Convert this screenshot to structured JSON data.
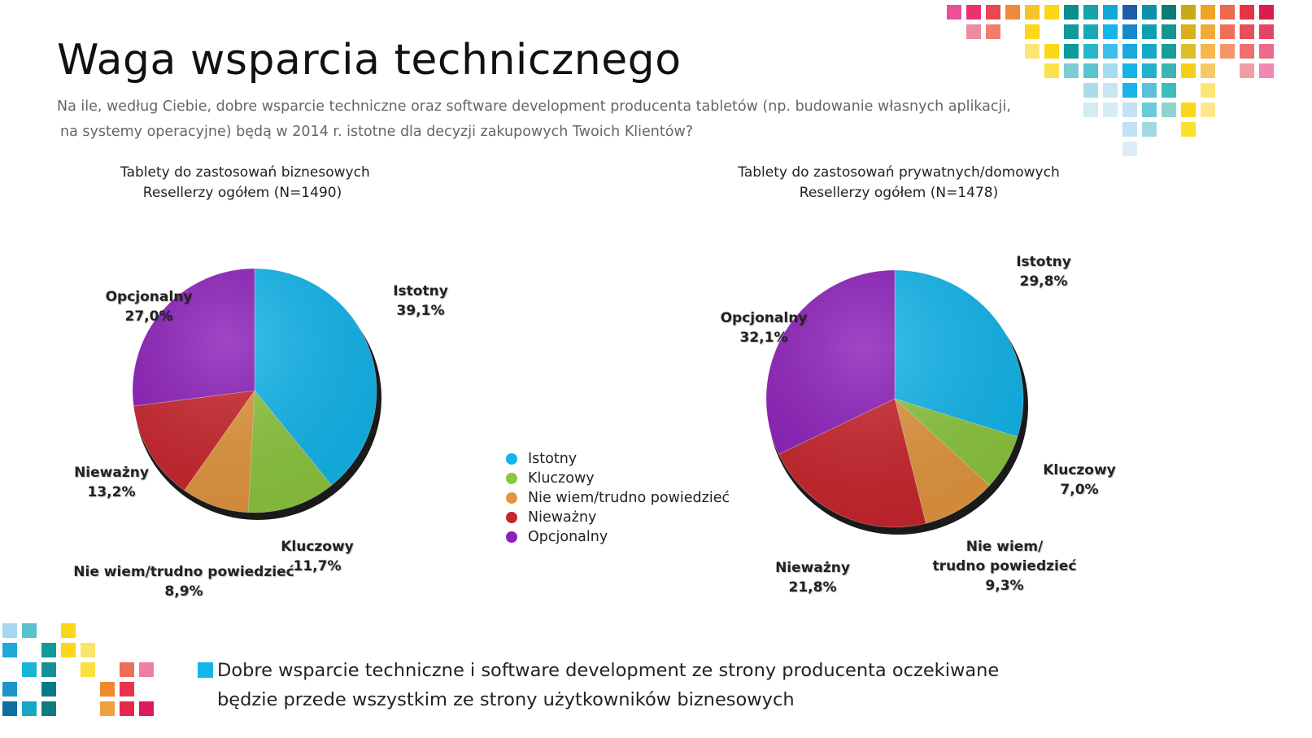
{
  "title": "Waga wsparcia technicznego",
  "subtitle": {
    "line1": "Na ile, według Ciebie, dobre wsparcie techniczne oraz software development producenta tabletów (np. budowanie własnych aplikacji,",
    "line2": "na systemy operacyjne) będą w 2014 r. istotne dla decyzji zakupowych Twoich Klientów?"
  },
  "colors": {
    "Istotny": "#13b5ea",
    "Kluczowy": "#8cc63f",
    "Nie wiem/trudno powiedzieć": "#e2963f",
    "Nieważny": "#c8262d",
    "Opcjonalny": "#8c1fb9",
    "footer_square": "#13b5ea"
  },
  "chart_data": [
    {
      "type": "pie",
      "title_line1": "Tablety do zastosowań biznesowych",
      "title_line2": "Resellerzy ogółem (N=1490)",
      "slices": [
        {
          "name": "Istotny",
          "value": 39.1,
          "label_name": "Istotny",
          "label_value": "39,1%"
        },
        {
          "name": "Kluczowy",
          "value": 11.7,
          "label_name": "Kluczowy",
          "label_value": "11,7%"
        },
        {
          "name": "Nie wiem/trudno powiedzieć",
          "value": 8.9,
          "label_name": "Nie wiem/trudno powiedzieć",
          "label_value": "8,9%"
        },
        {
          "name": "Nieważny",
          "value": 13.2,
          "label_name": "Nieważny",
          "label_value": "13,2%"
        },
        {
          "name": "Opcjonalny",
          "value": 27.0,
          "label_name": "Opcjonalny",
          "label_value": "27,0%"
        }
      ]
    },
    {
      "type": "pie",
      "title_line1": "Tablety do zastosowań prywatnych/domowych",
      "title_line2": "Resellerzy ogółem (N=1478)",
      "slices": [
        {
          "name": "Istotny",
          "value": 29.8,
          "label_name": "Istotny",
          "label_value": "29,8%"
        },
        {
          "name": "Kluczowy",
          "value": 7.0,
          "label_name": "Kluczowy",
          "label_value": "7,0%"
        },
        {
          "name": "Nie wiem/trudno powiedzieć",
          "value": 9.3,
          "label_name_l1": "Nie wiem/",
          "label_name_l2": "trudno powiedzieć",
          "label_value": "9,3%"
        },
        {
          "name": "Nieważny",
          "value": 21.8,
          "label_name": "Nieważny",
          "label_value": "21,8%"
        },
        {
          "name": "Opcjonalny",
          "value": 32.1,
          "label_name": "Opcjonalny",
          "label_value": "32,1%"
        }
      ]
    }
  ],
  "legend": [
    "Istotny",
    "Kluczowy",
    "Nie wiem/trudno powiedzieć",
    "Nieważny",
    "Opcjonalny"
  ],
  "footer": {
    "line1": "Dobre wsparcie techniczne i software development ze strony producenta oczekiwane",
    "line2": "będzie przede wszystkim ze strony użytkowników biznesowych"
  }
}
